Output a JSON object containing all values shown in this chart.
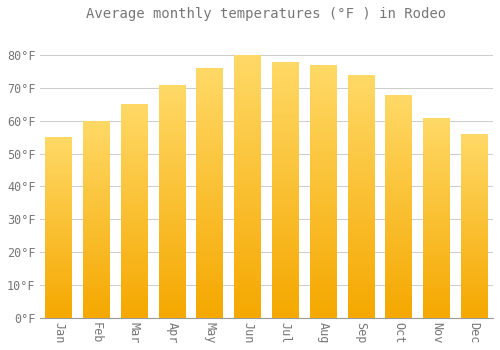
{
  "title": "Average monthly temperatures (°F ) in Rodeo",
  "months": [
    "Jan",
    "Feb",
    "Mar",
    "Apr",
    "May",
    "Jun",
    "Jul",
    "Aug",
    "Sep",
    "Oct",
    "Nov",
    "Dec"
  ],
  "values": [
    55,
    60,
    65,
    71,
    76,
    80,
    78,
    77,
    74,
    68,
    61,
    56
  ],
  "bar_color_bottom": "#F5A800",
  "bar_color_top": "#FFD966",
  "background_color": "#FFFFFF",
  "grid_color": "#CCCCCC",
  "text_color": "#777777",
  "ylim": [
    0,
    88
  ],
  "yticks": [
    0,
    10,
    20,
    30,
    40,
    50,
    60,
    70,
    80
  ],
  "title_fontsize": 10,
  "tick_fontsize": 8.5,
  "bar_width": 0.7
}
